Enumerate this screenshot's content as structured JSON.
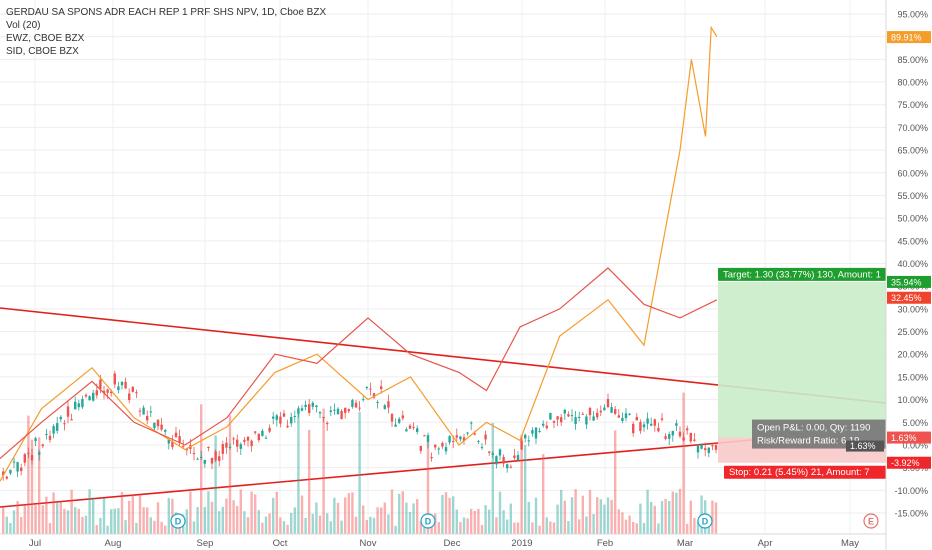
{
  "chart_data": {
    "type": "line",
    "title": "GERDAU SA SPONS ADR EACH REP 1 PRF SHS NPV, 1D, Cboe BZX",
    "indicator": "Vol (20)",
    "compare_series": [
      "EWZ, CBOE BZX",
      "SID, CBOE BZX"
    ],
    "x_tick_labels": [
      "Jul",
      "Aug",
      "Sep",
      "Oct",
      "Nov",
      "Dec",
      "2019",
      "Feb",
      "Mar",
      "Apr",
      "May"
    ],
    "y_unit": "%",
    "y_tick_labels": [
      "95.00%",
      "90.00%",
      "85.00%",
      "80.00%",
      "75.00%",
      "70.00%",
      "65.00%",
      "60.00%",
      "55.00%",
      "50.00%",
      "45.00%",
      "40.00%",
      "35.00%",
      "30.00%",
      "25.00%",
      "20.00%",
      "15.00%",
      "10.00%",
      "5.00%",
      "0.00%",
      "-5.00%",
      "-10.00%",
      "-15.00%"
    ],
    "ylim": [
      -17,
      97
    ],
    "series": [
      {
        "name": "SID, CBOE BZX",
        "color": "#f59d2b",
        "last_label": "89.91%",
        "x": [
          "Jul 1",
          "Jul 15",
          "Aug 1",
          "Aug 15",
          "Sep 1",
          "Sep 15",
          "Oct 1",
          "Oct 15",
          "Nov 1",
          "Nov 15",
          "Dec 1",
          "Dec 15",
          "Jan 1",
          "Jan 15",
          "Feb 1",
          "Feb 15",
          "Mar 1",
          "Mar 5",
          "Mar 10",
          "Mar 12",
          "Mar 14"
        ],
        "values": [
          -8,
          8,
          17,
          6,
          -1,
          4,
          16,
          20,
          10,
          15,
          0,
          5,
          1,
          24,
          32,
          22,
          65,
          85,
          68,
          92,
          90
        ]
      },
      {
        "name": "EWZ, CBOE BZX",
        "color": "#e8534b",
        "last_label": "32.45%",
        "x": [
          "Jul 1",
          "Jul 15",
          "Aug 1",
          "Aug 15",
          "Sep 1",
          "Sep 15",
          "Oct 1",
          "Oct 15",
          "Nov 1",
          "Nov 15",
          "Dec 1",
          "Dec 15",
          "Jan 1",
          "Jan 15",
          "Feb 1",
          "Feb 15",
          "Mar 1",
          "Mar 14"
        ],
        "values": [
          -3,
          5,
          14,
          5,
          0,
          6,
          20,
          18,
          28,
          20,
          16,
          12,
          26,
          30,
          39,
          31,
          28,
          32
        ]
      }
    ],
    "position": {
      "target_label": "Target: 1.30 (33.77%) 130, Amount: 1",
      "target_price_label": "35.94%",
      "stop_label": "Stop: 0.21 (5.45%) 21, Amount: 7",
      "stop_price_label": "-3.92%",
      "pnl_label": "Open P&L: 0.00, Qty: 1190",
      "ratio_label": "Risk/Reward Ratio: 6.19",
      "entry_labels": [
        "1.63%",
        "1.63%"
      ],
      "target_color": "#1e9e2e",
      "stop_color": "#f0262a"
    },
    "trendlines_color": "#e0201b",
    "candle_up_color": "#26a69a",
    "candle_down_color": "#ef5350",
    "event_markers": [
      "D",
      "D",
      "D",
      "E"
    ],
    "grid": true
  }
}
